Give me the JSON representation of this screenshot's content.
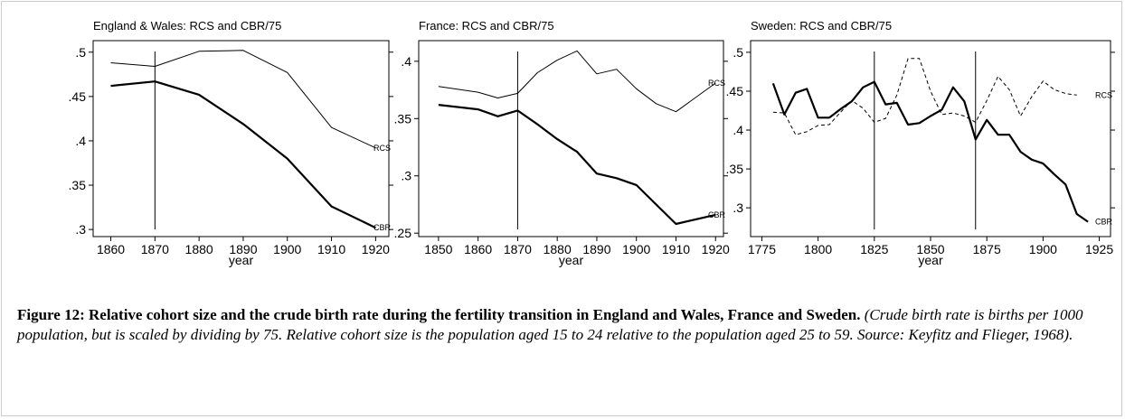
{
  "chart_data": [
    {
      "type": "line",
      "title": "England & Wales: RCS and CBR/75",
      "x_label": "year",
      "x": [
        1860,
        1870,
        1880,
        1890,
        1900,
        1910,
        1920
      ],
      "series": [
        {
          "name": "RCS",
          "color": "#000000",
          "width": 1,
          "dash": false,
          "values": [
            0.488,
            0.484,
            0.501,
            0.502,
            0.477,
            0.415,
            0.392
          ]
        },
        {
          "name": "CBR",
          "color": "#000000",
          "width": 2.2,
          "dash": false,
          "values": [
            0.462,
            0.467,
            0.452,
            0.419,
            0.38,
            0.326,
            0.302
          ]
        }
      ],
      "vlines": [
        1870
      ],
      "xlim": [
        1856,
        1923
      ],
      "xticks": [
        1860,
        1870,
        1880,
        1890,
        1900,
        1910,
        1920
      ],
      "ylim": [
        0.292,
        0.513
      ],
      "yticks": [
        {
          "value": 0.3,
          "label": ".3"
        },
        {
          "value": 0.35,
          "label": ".35"
        },
        {
          "value": 0.4,
          "label": ".4"
        },
        {
          "value": 0.45,
          "label": ".45"
        },
        {
          "value": 0.5,
          "label": ".5"
        }
      ]
    },
    {
      "type": "line",
      "title": "France: RCS and CBR/75",
      "x_label": "year",
      "x": [
        1850,
        1860,
        1865,
        1870,
        1875,
        1880,
        1885,
        1890,
        1895,
        1900,
        1905,
        1910,
        1920
      ],
      "series": [
        {
          "name": "RCS",
          "color": "#000000",
          "width": 1,
          "dash": false,
          "values": [
            0.378,
            0.373,
            0.368,
            0.372,
            0.39,
            0.401,
            0.409,
            0.389,
            0.393,
            0.376,
            0.363,
            0.356,
            0.381
          ]
        },
        {
          "name": "CBR",
          "color": "#000000",
          "width": 2.2,
          "dash": false,
          "values": [
            0.362,
            0.358,
            0.352,
            0.357,
            0.345,
            0.332,
            0.321,
            0.302,
            0.298,
            0.292,
            0.275,
            0.258,
            0.266
          ]
        }
      ],
      "vlines": [
        1870
      ],
      "xlim": [
        1845,
        1922
      ],
      "xticks": [
        1850,
        1860,
        1870,
        1880,
        1890,
        1900,
        1910,
        1920
      ],
      "ylim": [
        0.247,
        0.418
      ],
      "yticks": [
        {
          "value": 0.25,
          "label": ".25"
        },
        {
          "value": 0.3,
          "label": ".3"
        },
        {
          "value": 0.35,
          "label": ".35"
        },
        {
          "value": 0.4,
          "label": ".4"
        }
      ]
    },
    {
      "type": "line",
      "title": "Sweden: RCS and CBR/75",
      "x_label": "year",
      "x": [
        1780,
        1785,
        1790,
        1795,
        1800,
        1805,
        1810,
        1815,
        1820,
        1825,
        1830,
        1835,
        1840,
        1845,
        1850,
        1855,
        1860,
        1865,
        1870,
        1875,
        1880,
        1885,
        1890,
        1895,
        1900,
        1905,
        1910,
        1915,
        1920
      ],
      "series": [
        {
          "name": "RCS",
          "color": "#000000",
          "width": 1,
          "dash": true,
          "values": [
            0.423,
            0.422,
            0.394,
            0.398,
            0.406,
            0.407,
            0.423,
            0.438,
            0.428,
            0.41,
            0.415,
            0.445,
            0.492,
            0.492,
            0.45,
            0.42,
            0.422,
            0.418,
            0.41,
            0.438,
            0.469,
            0.452,
            0.418,
            0.443,
            0.463,
            0.452,
            0.447,
            0.445,
            null
          ]
        },
        {
          "name": "CBR",
          "color": "#000000",
          "width": 2.2,
          "dash": false,
          "values": [
            0.46,
            0.42,
            0.448,
            0.453,
            0.416,
            0.416,
            0.427,
            0.437,
            0.455,
            0.462,
            0.433,
            0.435,
            0.407,
            0.409,
            0.418,
            0.426,
            0.455,
            0.437,
            0.388,
            0.413,
            0.394,
            0.394,
            0.372,
            0.362,
            0.357,
            0.343,
            0.33,
            0.292,
            0.282
          ]
        }
      ],
      "vlines": [
        1825,
        1870
      ],
      "xlim": [
        1770,
        1930
      ],
      "xticks": [
        1775,
        1800,
        1825,
        1850,
        1875,
        1900,
        1925
      ],
      "ylim": [
        0.263,
        0.515
      ],
      "yticks": [
        {
          "value": 0.3,
          "label": ".3"
        },
        {
          "value": 0.35,
          "label": ".35"
        },
        {
          "value": 0.4,
          "label": ".4"
        },
        {
          "value": 0.45,
          "label": ".45"
        },
        {
          "value": 0.5,
          "label": ".5"
        }
      ]
    }
  ],
  "caption": {
    "title": "Figure 12: Relative cohort size and the crude birth rate during the fertility transition in England and Wales, France and Sweden.",
    "note": "(Crude birth rate is births per 1000 population, but is scaled by dividing by 75.  Relative cohort size is the population aged 15 to 24 relative to the population aged 25 to 59.  Source: Keyfitz and Flieger, 1968)."
  }
}
